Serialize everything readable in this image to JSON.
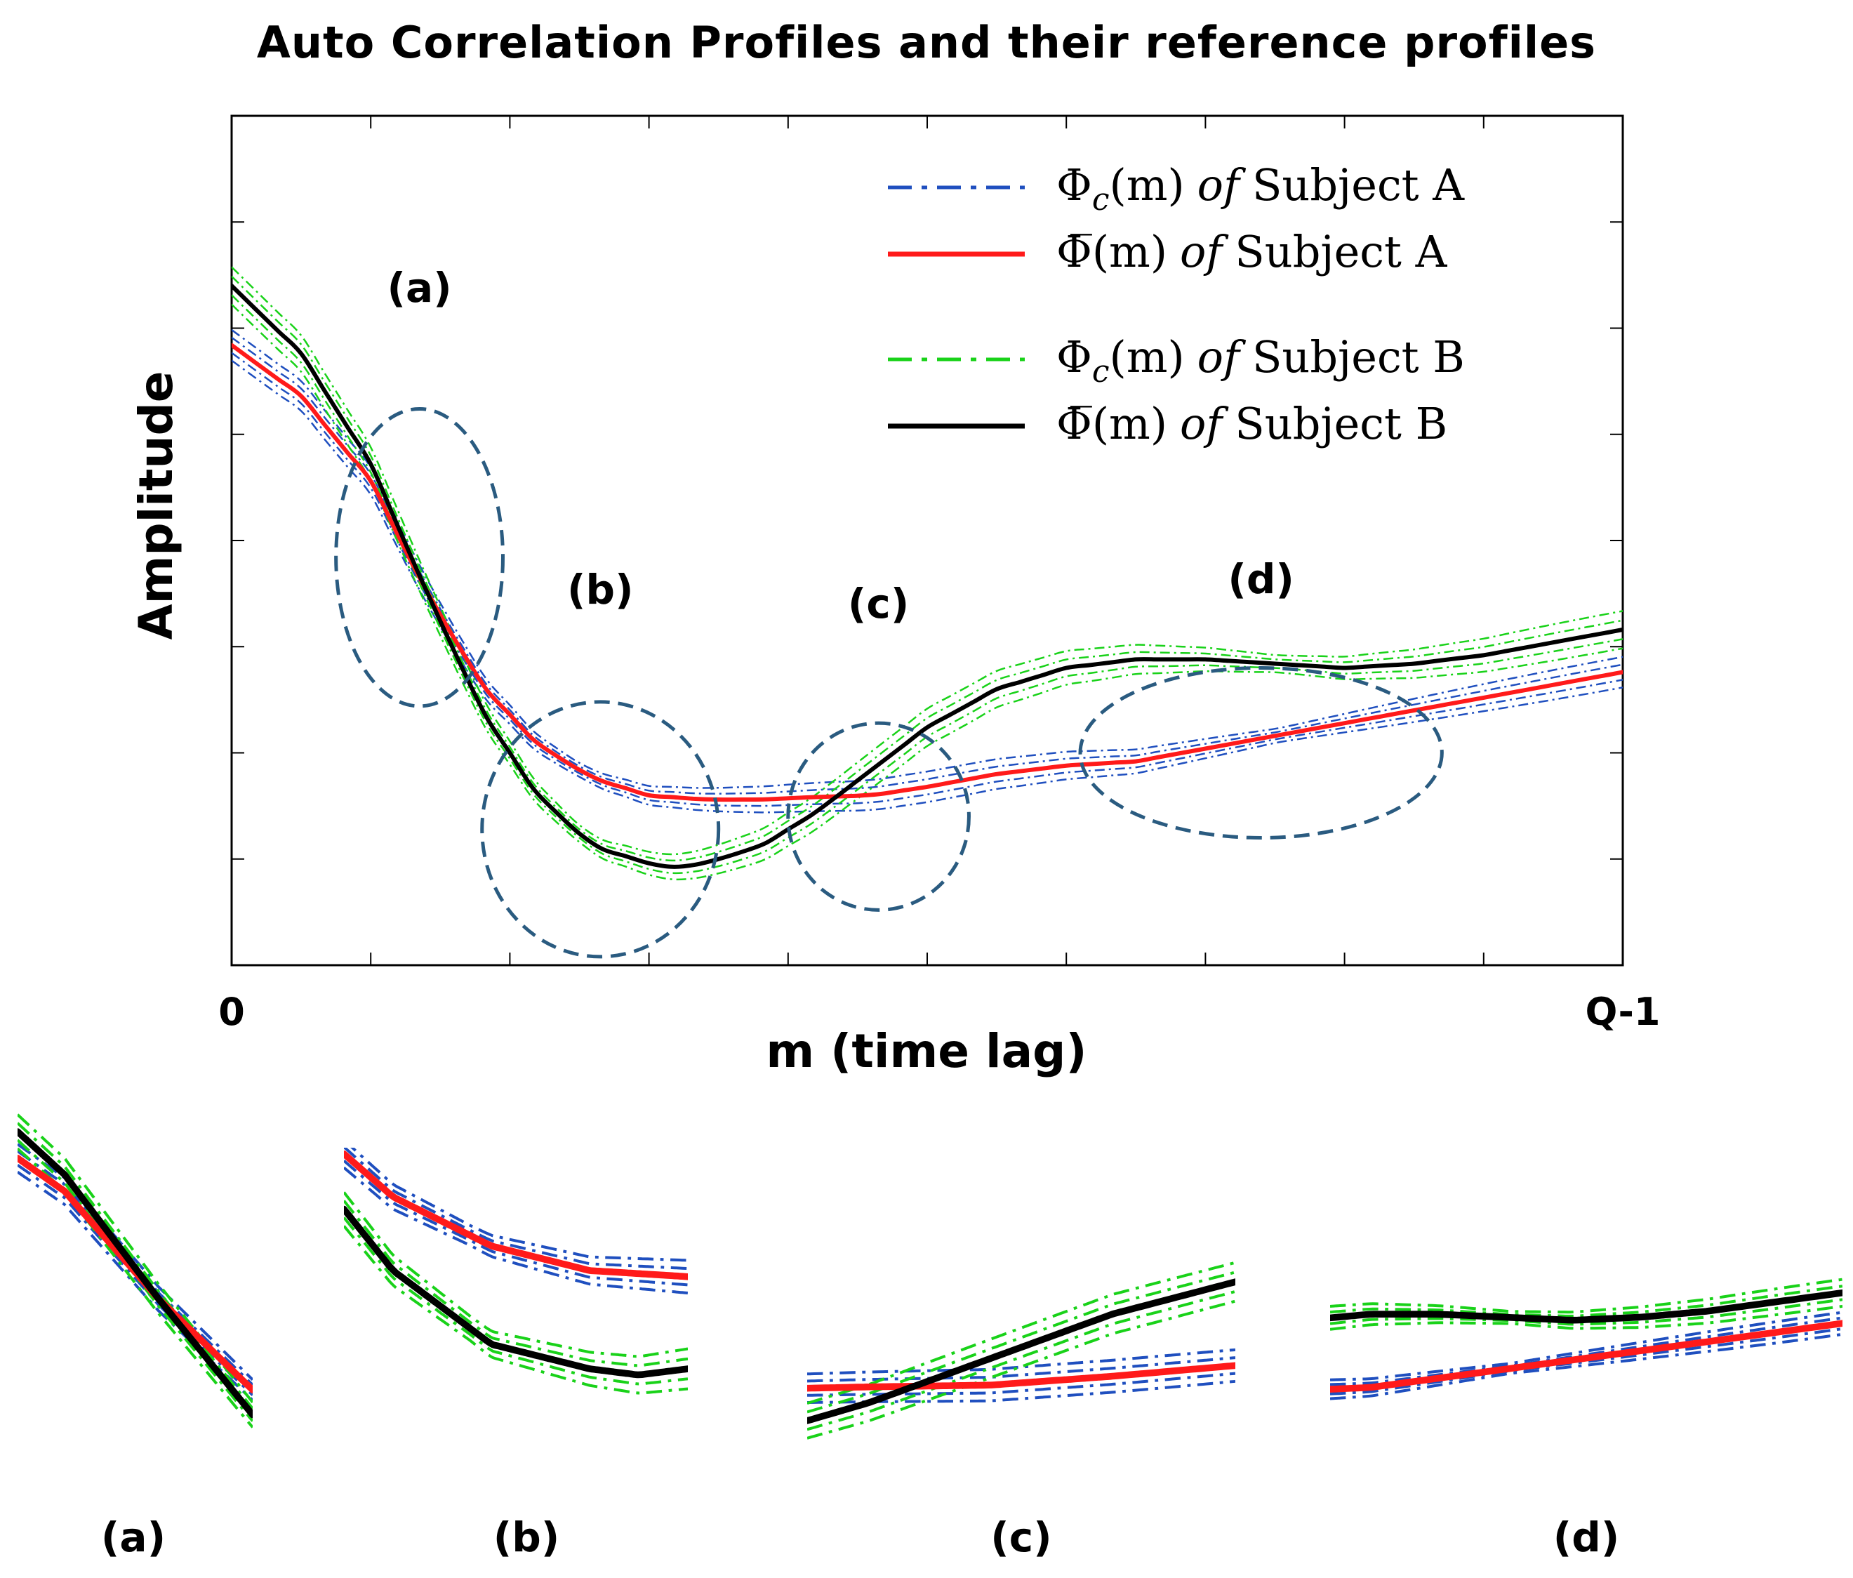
{
  "chart_data": {
    "type": "line",
    "title": "Auto Correlation Profiles and their reference profiles",
    "xlabel": "m (time lag)",
    "ylabel": "Amplitude",
    "x_tick_labels": [
      "0",
      "Q-1"
    ],
    "xlim": [
      0,
      100
    ],
    "ylim": [
      0,
      100
    ],
    "grid": false,
    "legend_position": "top-right",
    "legend": [
      {
        "prefix": "Φ",
        "sub": "c",
        "arg": "(m)",
        "of": "of",
        "suffix": "Subject A",
        "style": "dash-dot",
        "color": "#1f4fbf"
      },
      {
        "prefix": "Φ̅",
        "sub": "",
        "arg": "(m)",
        "of": "of",
        "suffix": "Subject A",
        "style": "solid",
        "color": "#ff1a1a"
      },
      {
        "prefix": "Φ",
        "sub": "c",
        "arg": "(m)",
        "of": "of",
        "suffix": "Subject B",
        "style": "dash-dot",
        "color": "#19d219"
      },
      {
        "prefix": "Φ̅",
        "sub": "",
        "arg": "(m)",
        "of": "of",
        "suffix": "Subject B",
        "style": "solid",
        "color": "#000000"
      }
    ],
    "series": [
      {
        "name": "reference Subject A",
        "color": "#ff1a1a",
        "style": "solid",
        "x": [
          0,
          5,
          10,
          14,
          18,
          22,
          26,
          30,
          34,
          38,
          42,
          46,
          50,
          55,
          60,
          65,
          70,
          75,
          80,
          85,
          90,
          95,
          100
        ],
        "y": [
          73,
          67,
          57,
          44,
          33,
          26,
          22,
          20,
          19.5,
          19.5,
          19.8,
          20,
          21,
          22.5,
          23.5,
          24,
          25.5,
          27,
          28.5,
          30,
          31.5,
          33,
          34.5
        ]
      },
      {
        "name": "reference Subject B",
        "color": "#000000",
        "style": "solid",
        "x": [
          0,
          5,
          10,
          14,
          18,
          22,
          26,
          30,
          32,
          34,
          38,
          42,
          46,
          50,
          55,
          60,
          65,
          70,
          75,
          80,
          85,
          90,
          95,
          100
        ],
        "y": [
          80,
          72,
          59,
          44,
          30,
          20,
          14,
          12,
          11.5,
          12,
          14,
          18,
          23,
          28,
          32.5,
          35,
          36,
          36,
          35.5,
          35,
          35.5,
          36.5,
          38,
          39.5
        ]
      }
    ],
    "series_variations": {
      "Subject A": {
        "color": "#1f4fbf",
        "style": "dash-dot",
        "offsets": [
          -1.8,
          -0.9,
          0.9,
          1.8
        ]
      },
      "Subject B": {
        "color": "#19d219",
        "style": "dash-dot",
        "offsets": [
          -2.2,
          -1.1,
          1.1,
          2.2
        ]
      }
    },
    "annotations": [
      {
        "label": "(a)",
        "cx": 13.5,
        "cy": 48,
        "rx": 6,
        "ry": 17.5
      },
      {
        "label": "(b)",
        "cx": 26.5,
        "cy": 16,
        "rx": 8.5,
        "ry": 15
      },
      {
        "label": "(c)",
        "cx": 46.5,
        "cy": 17.5,
        "rx": 6.5,
        "ry": 11
      },
      {
        "label": "(d)",
        "cx": 74,
        "cy": 25,
        "rx": 13,
        "ry": 10
      }
    ],
    "zoom_panels": [
      {
        "label": "(a)",
        "x_range": [
          8,
          18
        ]
      },
      {
        "label": "(b)",
        "x_range": [
          20,
          34
        ]
      },
      {
        "label": "(c)",
        "x_range": [
          40,
          54
        ]
      },
      {
        "label": "(d)",
        "x_range": [
          62,
          100
        ]
      }
    ]
  }
}
